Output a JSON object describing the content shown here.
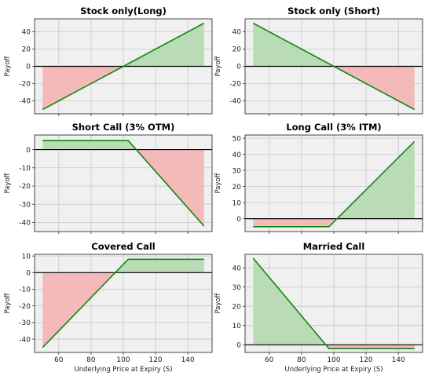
{
  "chart_data": [
    {
      "type": "area",
      "title": "Stock only(Long)",
      "ylabel": "Payoff",
      "xlabel": "",
      "xlim": [
        45,
        155
      ],
      "ylim": [
        -55,
        55
      ],
      "yticks": [
        -40,
        -20,
        0,
        20,
        40
      ],
      "xticks": [
        60,
        80,
        100,
        120,
        140
      ],
      "show_xtick_labels": false,
      "x": [
        50,
        150
      ],
      "y": [
        -50,
        50
      ]
    },
    {
      "type": "area",
      "title": "Stock only (Short)",
      "ylabel": "Payoff",
      "xlabel": "",
      "xlim": [
        45,
        155
      ],
      "ylim": [
        -55,
        55
      ],
      "yticks": [
        -40,
        -20,
        0,
        20,
        40
      ],
      "xticks": [
        60,
        80,
        100,
        120,
        140
      ],
      "show_xtick_labels": false,
      "x": [
        50,
        150
      ],
      "y": [
        50,
        -50
      ]
    },
    {
      "type": "area",
      "title": "Short Call (3% OTM)",
      "ylabel": "Payoff",
      "xlabel": "",
      "xlim": [
        45,
        155
      ],
      "ylim": [
        -45,
        8
      ],
      "yticks": [
        -40,
        -30,
        -20,
        -10,
        0
      ],
      "xticks": [
        60,
        80,
        100,
        120,
        140
      ],
      "show_xtick_labels": false,
      "x": [
        50,
        103,
        150
      ],
      "y": [
        5,
        5,
        -42
      ]
    },
    {
      "type": "area",
      "title": "Long Call (3% ITM)",
      "ylabel": "Payoff",
      "xlabel": "",
      "xlim": [
        45,
        155
      ],
      "ylim": [
        -8,
        52
      ],
      "yticks": [
        0,
        10,
        20,
        30,
        40,
        50
      ],
      "xticks": [
        60,
        80,
        100,
        120,
        140
      ],
      "show_xtick_labels": false,
      "x": [
        50,
        97,
        150
      ],
      "y": [
        -5,
        -5,
        48
      ]
    },
    {
      "type": "area",
      "title": "Covered Call",
      "ylabel": "Payoff",
      "xlabel": "Underlying Price at Expiry (S)",
      "xlim": [
        45,
        155
      ],
      "ylim": [
        -48,
        11
      ],
      "yticks": [
        -40,
        -30,
        -20,
        -10,
        0,
        10
      ],
      "xticks": [
        60,
        80,
        100,
        120,
        140
      ],
      "show_xtick_labels": true,
      "x": [
        50,
        103,
        150
      ],
      "y": [
        -45,
        8,
        8
      ]
    },
    {
      "type": "area",
      "title": "Married Call",
      "ylabel": "Payoff",
      "xlabel": "Underlying Price at Expiry (S)",
      "xlim": [
        45,
        155
      ],
      "ylim": [
        -4,
        47
      ],
      "yticks": [
        0,
        10,
        20,
        30,
        40
      ],
      "xticks": [
        60,
        80,
        100,
        120,
        140
      ],
      "show_xtick_labels": true,
      "x": [
        50,
        97,
        150
      ],
      "y": [
        45,
        -2,
        -2
      ]
    }
  ],
  "colors": {
    "line": "#118811",
    "positive_fill": "#b9dcb6",
    "negative_fill": "#f4b9b9",
    "zero_line": "#000000",
    "plot_bg": "#f0f0f0",
    "grid": "#c8c8c8"
  }
}
